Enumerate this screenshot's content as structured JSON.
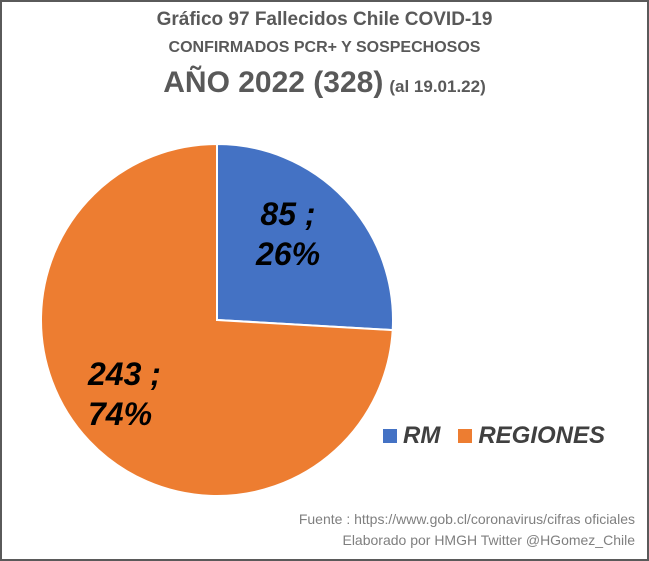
{
  "title_line1": "Gráfico 97 Fallecidos Chile COVID-19",
  "title_line2": "CONFIRMADOS PCR+ Y  SOSPECHOSOS",
  "title_line3": "AÑO 2022 (328)",
  "title_date": "(al 19.01.22)",
  "chart_data": {
    "type": "pie",
    "title": "Gráfico 97 Fallecidos Chile COVID-19",
    "categories": [
      "RM",
      "REGIONES"
    ],
    "values": [
      85,
      243
    ],
    "percentages": [
      26,
      74
    ],
    "colors": [
      "#4472C4",
      "#ED7D31"
    ],
    "legend_position": "bottom-right"
  },
  "labels": {
    "rm_value": "85 ;",
    "rm_percent": "26%",
    "regiones_value": "243 ;",
    "regiones_percent": "74%"
  },
  "legend": {
    "rm": "RM",
    "regiones": "REGIONES"
  },
  "source": {
    "line1": "Fuente  : https://www.gob.cl/coronavirus/cifras oficiales",
    "line2": "Elaborado por HMGH  Twitter @HGomez_Chile"
  }
}
